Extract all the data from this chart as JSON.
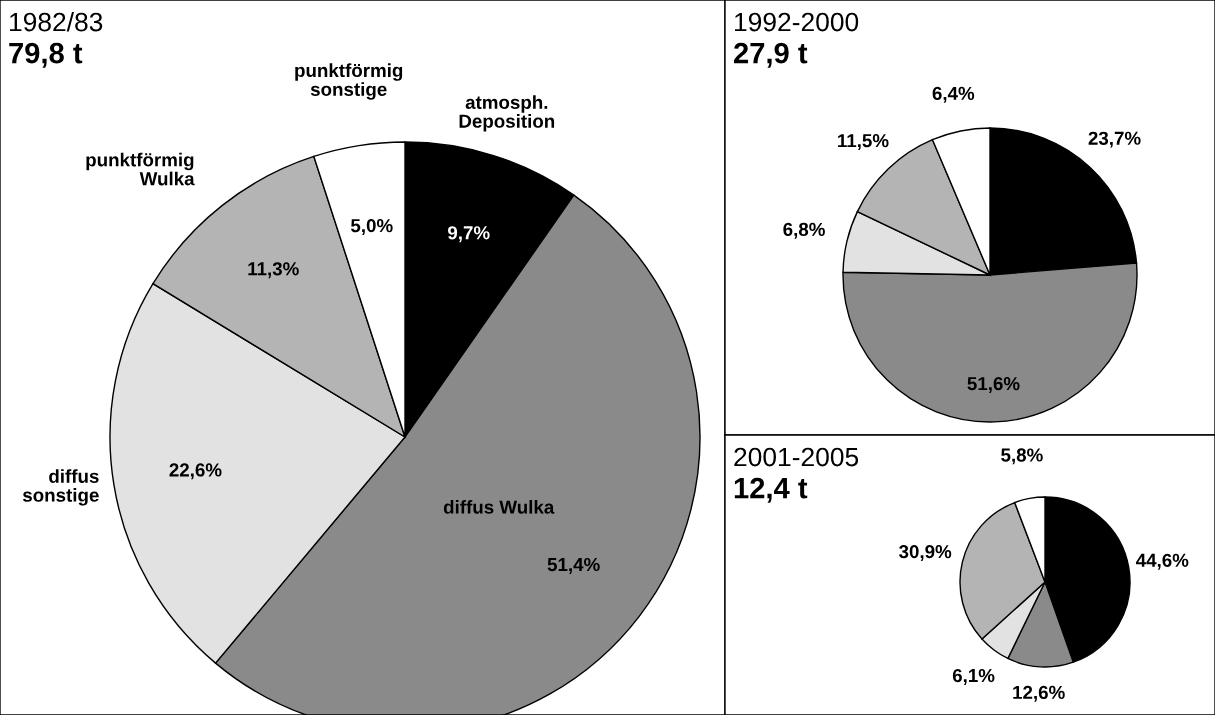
{
  "chart_data": [
    {
      "type": "pie",
      "title": "1982/83",
      "subtitle": "79,8 t",
      "categories": [
        "atmosph.\nDeposition",
        "diffus Wulka",
        "diffus\nsonstige",
        "punktförmig\nWulka",
        "punktförmig\nsonstige"
      ],
      "values": [
        9.7,
        51.4,
        22.6,
        11.3,
        5.0
      ],
      "value_labels": [
        "9,7%",
        "51,4%",
        "22,6%",
        "11,3%",
        "5,0%"
      ],
      "colors": [
        "#000000",
        "#8a8a8a",
        "#e2e2e2",
        "#b4b4b4",
        "#ffffff"
      ]
    },
    {
      "type": "pie",
      "title": "1992-2000",
      "subtitle": "27,9 t",
      "categories": [
        null,
        null,
        null,
        null,
        null
      ],
      "values": [
        23.7,
        51.6,
        6.8,
        11.5,
        6.4
      ],
      "value_labels": [
        "23,7%",
        "51,6%",
        "6,8%",
        "11,5%",
        "6,4%"
      ],
      "colors": [
        "#000000",
        "#8a8a8a",
        "#e2e2e2",
        "#b4b4b4",
        "#ffffff"
      ]
    },
    {
      "type": "pie",
      "title": "2001-2005",
      "subtitle": "12,4 t",
      "categories": [
        null,
        null,
        null,
        null,
        null
      ],
      "values": [
        44.6,
        12.6,
        6.1,
        30.9,
        5.8
      ],
      "value_labels": [
        "44,6%",
        "12,6%",
        "6,1%",
        "30,9%",
        "5,8%"
      ],
      "colors": [
        "#000000",
        "#8a8a8a",
        "#e2e2e2",
        "#b4b4b4",
        "#ffffff"
      ]
    }
  ]
}
